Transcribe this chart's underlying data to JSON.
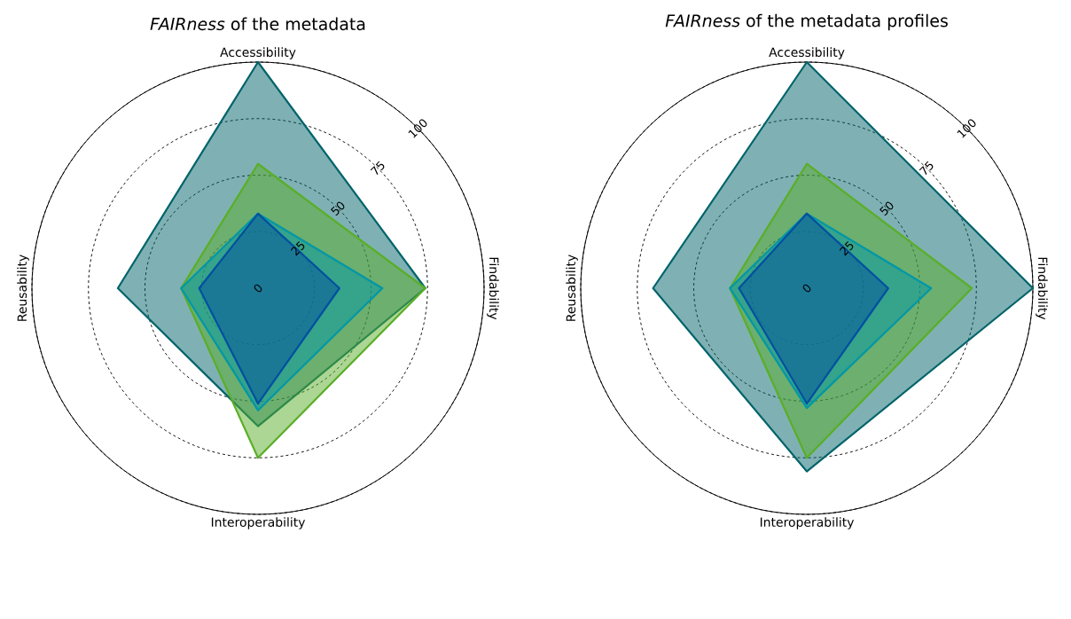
{
  "chart_data": [
    {
      "type": "radar",
      "title": "*FAIRness* of the metadata",
      "categories": [
        "Accessibility",
        "Findability",
        "Interoperability",
        "Reusability"
      ],
      "ylim": [
        0,
        100
      ],
      "yticks": [
        0,
        25,
        50,
        75,
        100
      ],
      "grid": true,
      "series": [
        {
          "color": "#00646a",
          "values": [
            100,
            74,
            61,
            62
          ]
        },
        {
          "color": "#5aae27",
          "values": [
            55,
            74,
            75,
            34
          ]
        },
        {
          "color": "#0097a7",
          "values": [
            33,
            55,
            54,
            34
          ]
        },
        {
          "color": "#0050a0",
          "values": [
            33,
            36,
            51,
            26
          ]
        }
      ]
    },
    {
      "type": "radar",
      "title": "*FAIRness* of the metadata profiles",
      "categories": [
        "Accessibility",
        "Findability",
        "Interoperability",
        "Reusability"
      ],
      "ylim": [
        0,
        100
      ],
      "yticks": [
        0,
        25,
        50,
        75,
        100
      ],
      "grid": true,
      "series": [
        {
          "color": "#00646a",
          "values": [
            100,
            100,
            81,
            68
          ]
        },
        {
          "color": "#5aae27",
          "values": [
            55,
            73,
            75,
            34
          ]
        },
        {
          "color": "#0097a7",
          "values": [
            33,
            55,
            53,
            34
          ]
        },
        {
          "color": "#0050a0",
          "values": [
            33,
            36,
            51,
            30
          ]
        }
      ]
    }
  ]
}
